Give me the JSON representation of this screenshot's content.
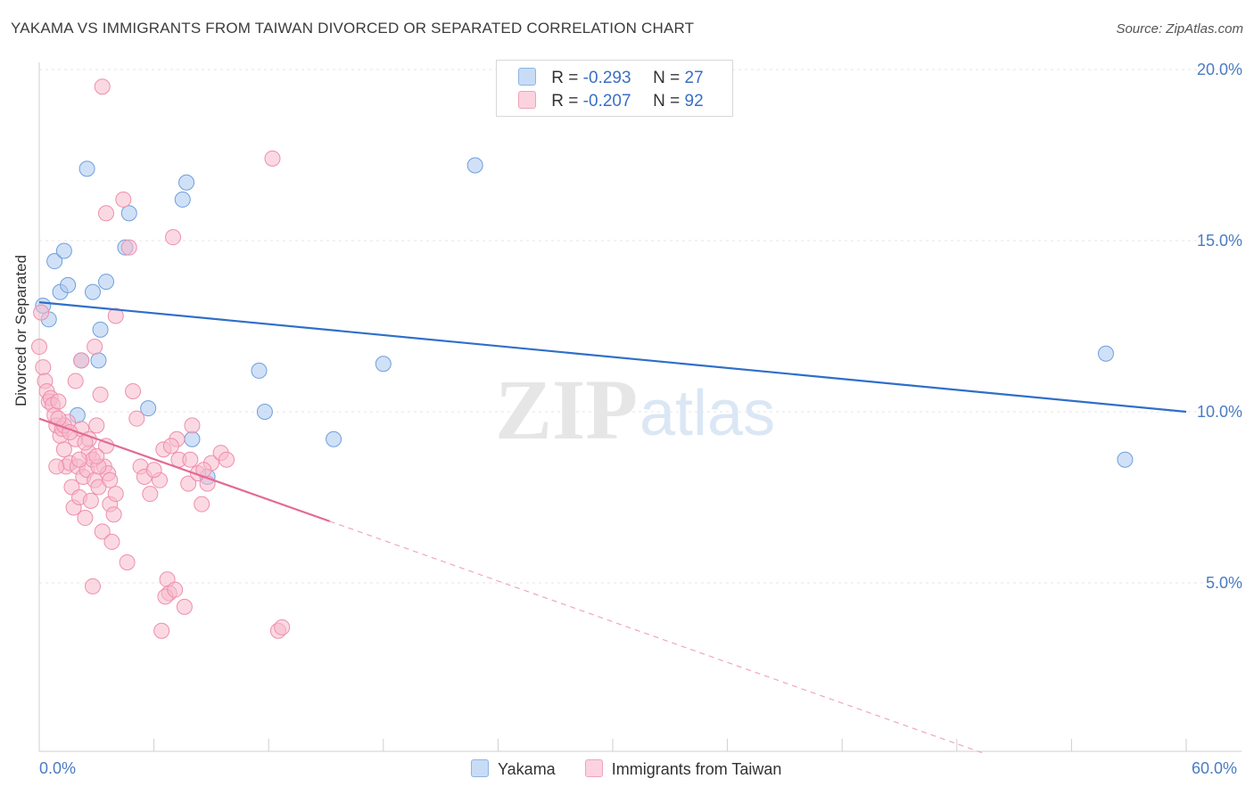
{
  "title": "YAKAMA VS IMMIGRANTS FROM TAIWAN DIVORCED OR SEPARATED CORRELATION CHART",
  "source": "Source: ZipAtlas.com",
  "watermark": {
    "zip": "ZIP",
    "atlas": "atlas"
  },
  "legend": {
    "rows": [
      {
        "r_label": "R =",
        "r_value": "-0.293",
        "n_label": "N =",
        "n_value": "27",
        "color": "#a9c8f0"
      },
      {
        "r_label": "R =",
        "r_value": "-0.207",
        "n_label": "N =",
        "n_value": "92",
        "color": "#f7b9cc"
      }
    ]
  },
  "bottom_legend": [
    "Yakama",
    "Immigrants from Taiwan"
  ],
  "chart_data": {
    "type": "scatter",
    "title": "YAKAMA VS IMMIGRANTS FROM TAIWAN DIVORCED OR SEPARATED CORRELATION CHART",
    "xlabel": "",
    "ylabel": "Divorced or Separated",
    "xlim": [
      0,
      60
    ],
    "ylim": [
      0,
      21
    ],
    "x_ticks_labels": {
      "min": "0.0%",
      "max": "60.0%"
    },
    "y_ticks": [
      5,
      10,
      15,
      20
    ],
    "y_tick_labels": [
      "5.0%",
      "10.0%",
      "15.0%",
      "20.0%"
    ],
    "grid": true,
    "series": [
      {
        "name": "Yakama",
        "color": "#a9c8f0",
        "stroke": "#6f9fdc",
        "trend": {
          "x0": 0,
          "y0": 13.2,
          "x1": 60,
          "y1": 10.0,
          "color": "#2f6fc9"
        },
        "points": [
          [
            0.2,
            13.1
          ],
          [
            0.5,
            12.7
          ],
          [
            0.8,
            14.4
          ],
          [
            1.1,
            13.5
          ],
          [
            1.3,
            14.7
          ],
          [
            1.5,
            13.7
          ],
          [
            2.0,
            9.9
          ],
          [
            2.2,
            11.5
          ],
          [
            2.5,
            17.1
          ],
          [
            2.8,
            13.5
          ],
          [
            3.1,
            11.5
          ],
          [
            3.2,
            12.4
          ],
          [
            3.5,
            13.8
          ],
          [
            4.5,
            14.8
          ],
          [
            4.7,
            15.8
          ],
          [
            5.7,
            10.1
          ],
          [
            7.5,
            16.2
          ],
          [
            7.7,
            16.7
          ],
          [
            8.0,
            9.2
          ],
          [
            8.8,
            8.1
          ],
          [
            11.5,
            11.2
          ],
          [
            11.8,
            10.0
          ],
          [
            15.4,
            9.2
          ],
          [
            18.0,
            11.4
          ],
          [
            22.8,
            17.2
          ],
          [
            55.8,
            11.7
          ],
          [
            56.8,
            8.6
          ]
        ]
      },
      {
        "name": "Immigrants from Taiwan",
        "color": "#f7b9cc",
        "stroke": "#ee8fad",
        "trend": {
          "x0": 0,
          "y0": 9.8,
          "x1": 15.2,
          "y1": 6.8,
          "color": "#e36a96"
        },
        "trend_dashed": {
          "x0": 15.2,
          "y0": 6.8,
          "x1": 49.5,
          "y1": 0.0
        },
        "points": [
          [
            0.0,
            11.9
          ],
          [
            0.1,
            12.9
          ],
          [
            0.2,
            11.3
          ],
          [
            0.3,
            10.9
          ],
          [
            0.4,
            10.6
          ],
          [
            0.5,
            10.3
          ],
          [
            0.6,
            10.4
          ],
          [
            0.7,
            10.2
          ],
          [
            0.8,
            9.9
          ],
          [
            0.9,
            9.6
          ],
          [
            1.0,
            10.3
          ],
          [
            1.1,
            9.3
          ],
          [
            1.2,
            9.5
          ],
          [
            1.3,
            8.9
          ],
          [
            1.4,
            8.4
          ],
          [
            1.5,
            9.7
          ],
          [
            1.6,
            8.5
          ],
          [
            1.7,
            7.8
          ],
          [
            1.8,
            7.2
          ],
          [
            1.9,
            9.2
          ],
          [
            2.0,
            8.4
          ],
          [
            2.1,
            7.5
          ],
          [
            2.2,
            9.5
          ],
          [
            2.3,
            8.1
          ],
          [
            2.4,
            6.9
          ],
          [
            2.5,
            8.3
          ],
          [
            2.6,
            8.8
          ],
          [
            2.7,
            7.4
          ],
          [
            2.8,
            8.6
          ],
          [
            2.9,
            8.0
          ],
          [
            3.0,
            9.6
          ],
          [
            3.1,
            7.8
          ],
          [
            3.2,
            10.5
          ],
          [
            3.3,
            6.5
          ],
          [
            3.4,
            8.4
          ],
          [
            3.5,
            9.0
          ],
          [
            3.6,
            8.2
          ],
          [
            3.7,
            7.3
          ],
          [
            3.8,
            6.2
          ],
          [
            3.9,
            7.0
          ],
          [
            4.0,
            7.6
          ],
          [
            2.8,
            4.9
          ],
          [
            3.3,
            19.5
          ],
          [
            3.5,
            15.8
          ],
          [
            4.4,
            16.2
          ],
          [
            4.7,
            14.8
          ],
          [
            4.9,
            10.6
          ],
          [
            4.6,
            5.6
          ],
          [
            5.1,
            9.8
          ],
          [
            5.3,
            8.4
          ],
          [
            5.5,
            8.1
          ],
          [
            5.8,
            7.6
          ],
          [
            6.3,
            8.0
          ],
          [
            6.5,
            8.9
          ],
          [
            6.7,
            5.1
          ],
          [
            6.8,
            4.7
          ],
          [
            7.0,
            15.1
          ],
          [
            7.2,
            9.2
          ],
          [
            7.3,
            8.6
          ],
          [
            7.6,
            4.3
          ],
          [
            7.8,
            7.9
          ],
          [
            8.0,
            9.6
          ],
          [
            8.3,
            8.2
          ],
          [
            8.5,
            7.3
          ],
          [
            8.8,
            7.9
          ],
          [
            9.0,
            8.5
          ],
          [
            9.5,
            8.8
          ],
          [
            9.8,
            8.6
          ],
          [
            6.4,
            3.6
          ],
          [
            6.6,
            4.6
          ],
          [
            7.1,
            4.8
          ],
          [
            12.2,
            17.4
          ],
          [
            12.5,
            3.6
          ],
          [
            12.7,
            3.7
          ],
          [
            2.2,
            11.5
          ],
          [
            2.9,
            11.9
          ],
          [
            4.0,
            12.8
          ],
          [
            1.9,
            10.9
          ],
          [
            0.9,
            8.4
          ],
          [
            1.3,
            9.6
          ],
          [
            2.1,
            8.6
          ],
          [
            2.6,
            9.2
          ],
          [
            3.1,
            8.4
          ],
          [
            3.7,
            8.0
          ],
          [
            6.0,
            8.3
          ],
          [
            6.9,
            9.0
          ],
          [
            7.9,
            8.6
          ],
          [
            8.6,
            8.3
          ],
          [
            1.0,
            9.8
          ],
          [
            1.6,
            9.4
          ],
          [
            2.4,
            9.1
          ],
          [
            3.0,
            8.7
          ]
        ]
      }
    ]
  }
}
